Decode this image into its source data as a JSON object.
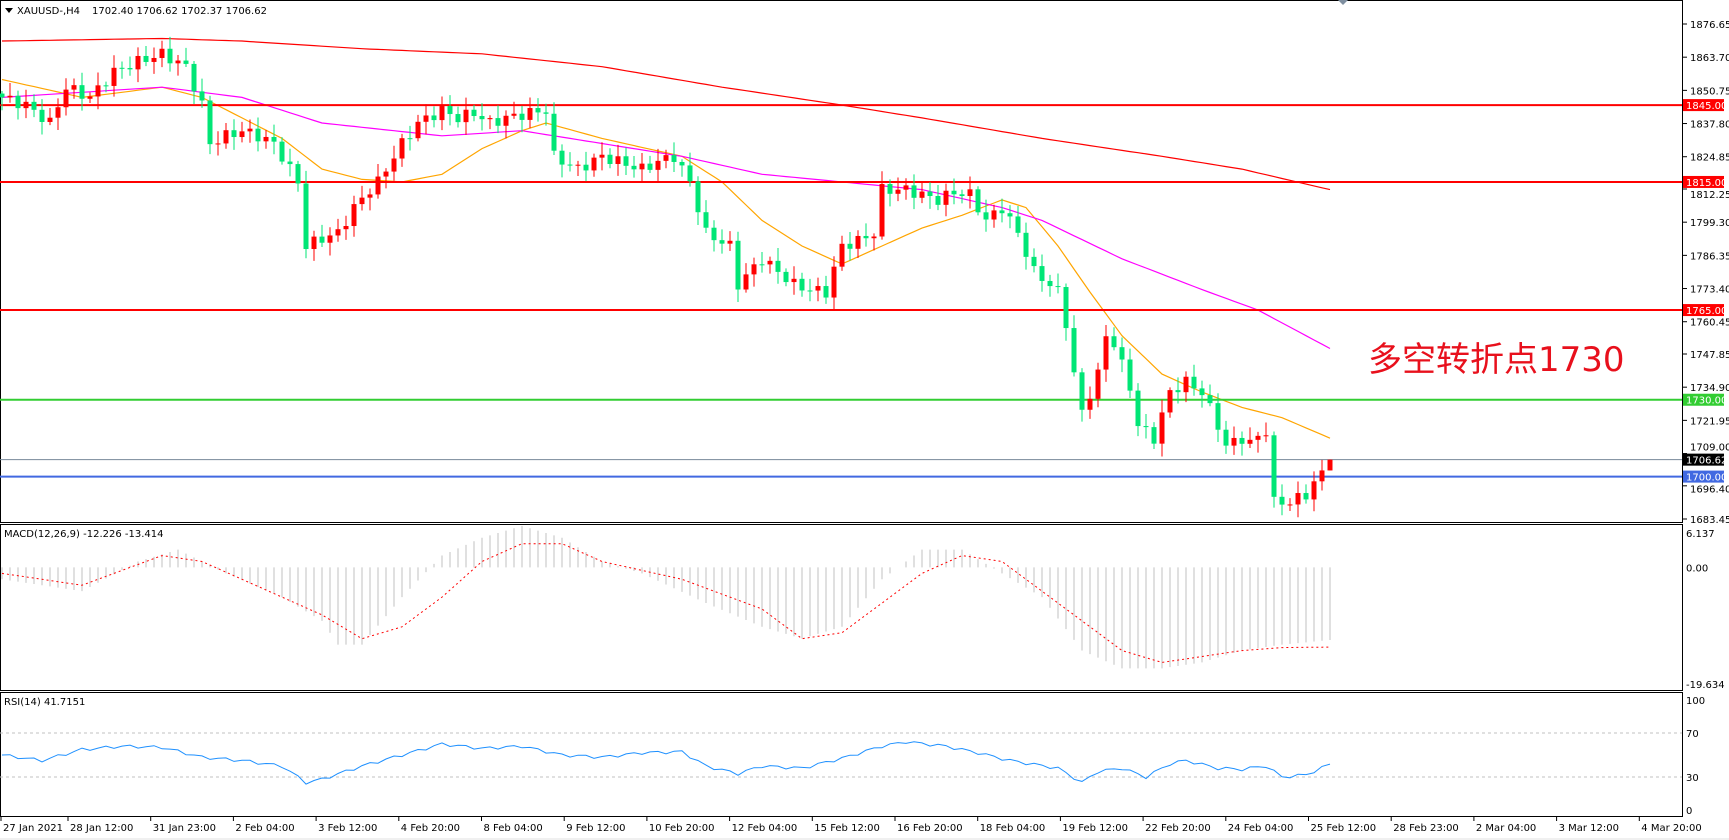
{
  "header": {
    "symbol_label": "XAUUSD-,H4",
    "ohlc": "1702.40 1706.62 1702.37 1706.62"
  },
  "annotation": "多空转折点1730",
  "colors": {
    "bull_candle": "#ff0000",
    "bear_candle": "#00e676",
    "ma_fast": "#ffa500",
    "ma_mid": "#ff00ff",
    "ma_slow": "#ff0000",
    "macd_hist": "#c0c0c0",
    "macd_signal": "#ff0000",
    "rsi": "#1e90ff",
    "level_red": "#ff0000",
    "level_green": "#32cd32",
    "level_blue": "#4169e1",
    "bid_line": "#778899"
  },
  "chart_data": [
    {
      "type": "candlestick",
      "title": "XAUUSD-,H4",
      "bar_count": 167,
      "ylim": [
        1683.45,
        1876.65
      ],
      "y_ticks": [
        "1876.65",
        "1863.70",
        "1850.75",
        "1837.80",
        "1824.85",
        "1812.25",
        "1799.30",
        "1786.35",
        "1773.40",
        "1760.45",
        "1747.85",
        "1734.90",
        "1721.95",
        "1709.00",
        "1696.40",
        "1683.45"
      ],
      "x_ticks": [
        "27 Jan 2021",
        "28 Jan 12:00",
        "31 Jan 23:00",
        "2 Feb 04:00",
        "3 Feb 12:00",
        "4 Feb 20:00",
        "8 Feb 04:00",
        "9 Feb 12:00",
        "10 Feb 20:00",
        "12 Feb 04:00",
        "15 Feb 12:00",
        "16 Feb 20:00",
        "18 Feb 04:00",
        "19 Feb 12:00",
        "22 Feb 20:00",
        "24 Feb 04:00",
        "25 Feb 12:00",
        "28 Feb 23:00",
        "2 Mar 04:00",
        "3 Mar 12:00",
        "4 Mar 20:00"
      ],
      "last_bar": {
        "open": 1702.4,
        "high": 1706.62,
        "low": 1702.37,
        "close": 1706.62
      },
      "close_path": [
        [
          0,
          1848
        ],
        [
          3,
          1845
        ],
        [
          6,
          1838
        ],
        [
          8,
          1852
        ],
        [
          11,
          1848
        ],
        [
          14,
          1858
        ],
        [
          17,
          1862
        ],
        [
          20,
          1865
        ],
        [
          23,
          1860
        ],
        [
          25,
          1845
        ],
        [
          26,
          1830
        ],
        [
          28,
          1833
        ],
        [
          30,
          1835
        ],
        [
          32,
          1833
        ],
        [
          34,
          1830
        ],
        [
          36,
          1820
        ],
        [
          37,
          1815
        ],
        [
          38,
          1790
        ],
        [
          40,
          1793
        ],
        [
          42,
          1795
        ],
        [
          44,
          1805
        ],
        [
          46,
          1812
        ],
        [
          47,
          1815
        ],
        [
          49,
          1825
        ],
        [
          50,
          1830
        ],
        [
          52,
          1838
        ],
        [
          55,
          1843
        ],
        [
          57,
          1840
        ],
        [
          59,
          1842
        ],
        [
          61,
          1838
        ],
        [
          63,
          1840
        ],
        [
          66,
          1842
        ],
        [
          68,
          1843
        ],
        [
          69,
          1825
        ],
        [
          72,
          1820
        ],
        [
          75,
          1825
        ],
        [
          78,
          1822
        ],
        [
          80,
          1820
        ],
        [
          82,
          1823
        ],
        [
          84,
          1825
        ],
        [
          86,
          1815
        ],
        [
          88,
          1795
        ],
        [
          91,
          1790
        ],
        [
          92,
          1775
        ],
        [
          95,
          1785
        ],
        [
          97,
          1780
        ],
        [
          99,
          1775
        ],
        [
          101,
          1773
        ],
        [
          103,
          1772
        ],
        [
          105,
          1790
        ],
        [
          107,
          1792
        ],
        [
          109,
          1795
        ],
        [
          110,
          1812
        ],
        [
          113,
          1812
        ],
        [
          115,
          1810
        ],
        [
          117,
          1808
        ],
        [
          119,
          1811
        ],
        [
          121,
          1810
        ],
        [
          123,
          1800
        ],
        [
          125,
          1805
        ],
        [
          127,
          1795
        ],
        [
          129,
          1780
        ],
        [
          131,
          1775
        ],
        [
          132,
          1772
        ],
        [
          133,
          1760
        ],
        [
          134,
          1740
        ],
        [
          135,
          1725
        ],
        [
          137,
          1740
        ],
        [
          138,
          1755
        ],
        [
          139,
          1752
        ],
        [
          141,
          1735
        ],
        [
          142,
          1720
        ],
        [
          144,
          1715
        ],
        [
          146,
          1733
        ],
        [
          148,
          1737
        ],
        [
          150,
          1733
        ],
        [
          152,
          1720
        ],
        [
          153,
          1712
        ],
        [
          155,
          1715
        ],
        [
          156,
          1713
        ],
        [
          158,
          1718
        ],
        [
          159,
          1690
        ],
        [
          161,
          1690
        ],
        [
          163,
          1693
        ],
        [
          165,
          1702.4
        ],
        [
          166,
          1706.62
        ]
      ],
      "moving_averages": [
        {
          "color_key": "ma_fast",
          "points": [
            [
              0,
              1855
            ],
            [
              10,
              1848
            ],
            [
              20,
              1852
            ],
            [
              25,
              1848
            ],
            [
              30,
              1840
            ],
            [
              35,
              1832
            ],
            [
              40,
              1820
            ],
            [
              45,
              1816
            ],
            [
              50,
              1815
            ],
            [
              55,
              1818
            ],
            [
              60,
              1828
            ],
            [
              65,
              1835
            ],
            [
              68,
              1838
            ],
            [
              75,
              1832
            ],
            [
              85,
              1825
            ],
            [
              90,
              1815
            ],
            [
              95,
              1800
            ],
            [
              100,
              1790
            ],
            [
              105,
              1783
            ],
            [
              110,
              1790
            ],
            [
              115,
              1797
            ],
            [
              120,
              1802
            ],
            [
              125,
              1808
            ],
            [
              128,
              1805
            ],
            [
              132,
              1790
            ],
            [
              136,
              1772
            ],
            [
              140,
              1755
            ],
            [
              145,
              1740
            ],
            [
              150,
              1733
            ],
            [
              155,
              1727
            ],
            [
              160,
              1723
            ],
            [
              166,
              1715
            ]
          ]
        },
        {
          "color_key": "ma_mid",
          "points": [
            [
              0,
              1848
            ],
            [
              20,
              1852
            ],
            [
              30,
              1848
            ],
            [
              40,
              1838
            ],
            [
              55,
              1833
            ],
            [
              65,
              1835
            ],
            [
              75,
              1830
            ],
            [
              85,
              1825
            ],
            [
              95,
              1818
            ],
            [
              105,
              1815
            ],
            [
              115,
              1812
            ],
            [
              125,
              1805
            ],
            [
              130,
              1800
            ],
            [
              140,
              1785
            ],
            [
              150,
              1773
            ],
            [
              157,
              1765
            ],
            [
              166,
              1750
            ]
          ]
        },
        {
          "color_key": "ma_slow",
          "points": [
            [
              0,
              1870
            ],
            [
              20,
              1871
            ],
            [
              30,
              1870
            ],
            [
              45,
              1867
            ],
            [
              60,
              1865
            ],
            [
              75,
              1860
            ],
            [
              90,
              1852
            ],
            [
              105,
              1845
            ],
            [
              115,
              1840
            ],
            [
              130,
              1832
            ],
            [
              145,
              1825
            ],
            [
              155,
              1820
            ],
            [
              166,
              1812
            ]
          ]
        }
      ],
      "levels": [
        {
          "price": 1845.0,
          "label": "1845.00",
          "color_key": "level_red"
        },
        {
          "price": 1815.0,
          "label": "1815.00",
          "color_key": "level_red"
        },
        {
          "price": 1765.0,
          "label": "1765.00",
          "color_key": "level_red"
        },
        {
          "price": 1730.0,
          "label": "1730.00",
          "color_key": "level_green"
        },
        {
          "price": 1706.62,
          "label": "1706.62",
          "color_key": "bid_line"
        },
        {
          "price": 1700.0,
          "label": "1700.00",
          "color_key": "level_blue"
        }
      ]
    },
    {
      "type": "bar",
      "title": "MACD(12,26,9) -12.226 -13.414",
      "ylim": [
        -19.634,
        6.137
      ],
      "y_ticks": [
        "6.137",
        "0.00",
        "-19.634"
      ],
      "histogram": [
        [
          0,
          -2
        ],
        [
          10,
          -4
        ],
        [
          17,
          1
        ],
        [
          22,
          3
        ],
        [
          28,
          -1
        ],
        [
          35,
          -5
        ],
        [
          40,
          -9
        ],
        [
          42,
          -13
        ],
        [
          45,
          -13
        ],
        [
          50,
          -5
        ],
        [
          55,
          2
        ],
        [
          60,
          5
        ],
        [
          65,
          7
        ],
        [
          70,
          5
        ],
        [
          75,
          1
        ],
        [
          80,
          -1
        ],
        [
          88,
          -6
        ],
        [
          95,
          -10
        ],
        [
          100,
          -12
        ],
        [
          105,
          -10
        ],
        [
          110,
          -2
        ],
        [
          115,
          3
        ],
        [
          120,
          3
        ],
        [
          125,
          -1
        ],
        [
          130,
          -5
        ],
        [
          135,
          -14
        ],
        [
          140,
          -17
        ],
        [
          145,
          -17
        ],
        [
          150,
          -16
        ],
        [
          155,
          -14
        ],
        [
          160,
          -13
        ],
        [
          166,
          -12.226
        ]
      ],
      "signal": [
        [
          0,
          -1
        ],
        [
          10,
          -3
        ],
        [
          20,
          2
        ],
        [
          25,
          1
        ],
        [
          30,
          -2
        ],
        [
          40,
          -8
        ],
        [
          45,
          -12
        ],
        [
          50,
          -10
        ],
        [
          55,
          -5
        ],
        [
          60,
          1
        ],
        [
          65,
          4
        ],
        [
          70,
          4
        ],
        [
          75,
          1
        ],
        [
          85,
          -2
        ],
        [
          95,
          -7
        ],
        [
          100,
          -12
        ],
        [
          105,
          -11
        ],
        [
          110,
          -6
        ],
        [
          115,
          -1
        ],
        [
          120,
          2
        ],
        [
          125,
          1
        ],
        [
          130,
          -4
        ],
        [
          135,
          -9
        ],
        [
          140,
          -14
        ],
        [
          145,
          -16
        ],
        [
          150,
          -15
        ],
        [
          155,
          -14
        ],
        [
          160,
          -13.5
        ],
        [
          166,
          -13.414
        ]
      ]
    },
    {
      "type": "line",
      "title": "RSI(14) 41.7151",
      "ylim": [
        0,
        100
      ],
      "y_ticks": [
        "100",
        "70",
        "30",
        "0"
      ],
      "levels": [
        70,
        30
      ],
      "values": [
        [
          0,
          50
        ],
        [
          5,
          45
        ],
        [
          10,
          55
        ],
        [
          15,
          58
        ],
        [
          20,
          57
        ],
        [
          25,
          48
        ],
        [
          30,
          45
        ],
        [
          35,
          40
        ],
        [
          38,
          25
        ],
        [
          40,
          28
        ],
        [
          45,
          40
        ],
        [
          50,
          50
        ],
        [
          55,
          60
        ],
        [
          60,
          56
        ],
        [
          65,
          58
        ],
        [
          70,
          50
        ],
        [
          75,
          48
        ],
        [
          80,
          52
        ],
        [
          85,
          53
        ],
        [
          88,
          40
        ],
        [
          92,
          33
        ],
        [
          95,
          40
        ],
        [
          100,
          38
        ],
        [
          105,
          47
        ],
        [
          110,
          58
        ],
        [
          113,
          62
        ],
        [
          118,
          58
        ],
        [
          122,
          52
        ],
        [
          126,
          45
        ],
        [
          132,
          38
        ],
        [
          135,
          25
        ],
        [
          137,
          35
        ],
        [
          140,
          38
        ],
        [
          143,
          30
        ],
        [
          146,
          42
        ],
        [
          148,
          45
        ],
        [
          152,
          38
        ],
        [
          155,
          37
        ],
        [
          158,
          40
        ],
        [
          160,
          30
        ],
        [
          163,
          32
        ],
        [
          166,
          41.7151
        ]
      ]
    }
  ]
}
